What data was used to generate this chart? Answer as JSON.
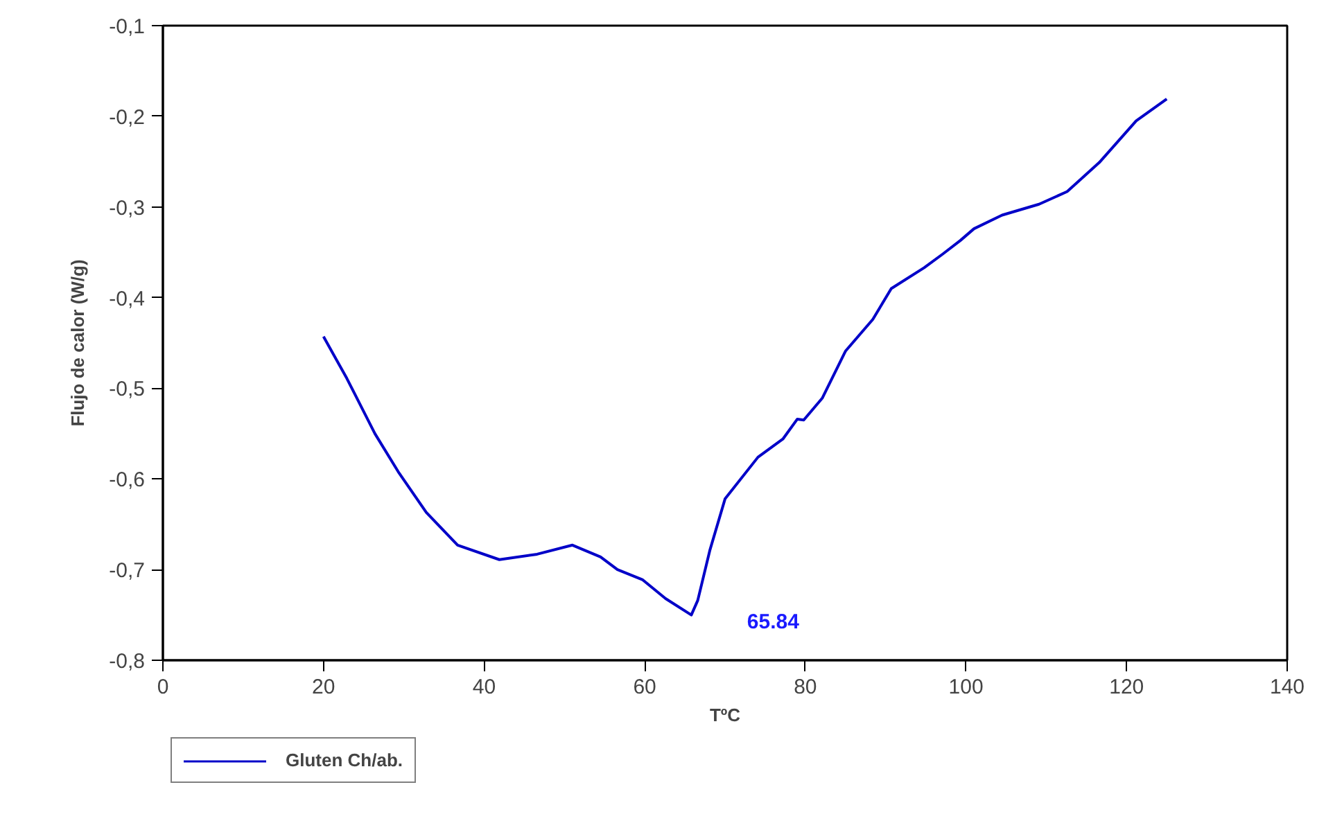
{
  "chart_data": {
    "type": "line",
    "xlabel": "TºC",
    "ylabel": "Flujo de calor (W/g)",
    "xlim": [
      0,
      140
    ],
    "xticks": [
      0,
      20,
      40,
      60,
      80,
      100,
      120,
      140
    ],
    "ylim": [
      -0.8,
      -0.1
    ],
    "yticks": [
      {
        "value": -0.8,
        "label": "-0,8"
      },
      {
        "value": -0.7,
        "label": "-0,7"
      },
      {
        "value": -0.6,
        "label": "-0,6"
      },
      {
        "value": -0.5,
        "label": "-0,5"
      },
      {
        "value": -0.4,
        "label": "-0,4"
      },
      {
        "value": -0.3,
        "label": "-0,3"
      },
      {
        "value": -0.2,
        "label": "-0,2"
      },
      {
        "value": -0.1,
        "label": "-0,1"
      }
    ],
    "grid": false,
    "legend": "bottom left",
    "marker": "none",
    "line_style": "solid",
    "annotations": [
      {
        "text": "65.84",
        "x": 65.84,
        "y": -0.75
      }
    ],
    "series": [
      {
        "name": "Gluten Ch/ab.",
        "color": "#0000c8",
        "x": [
          20,
          22.9,
          26.4,
          29.3,
          32.8,
          36.7,
          41.9,
          46.6,
          51.0,
          54.5,
          56.6,
          59.7,
          62.6,
          65.8,
          66.6,
          68.1,
          70.0,
          74.1,
          77.2,
          79.0,
          79.8,
          82.1,
          85.0,
          88.4,
          90.7,
          94.8,
          97.1,
          99.3,
          101.0,
          104.5,
          109.1,
          112.6,
          116.6,
          121.2,
          125
        ],
        "values": [
          -0.443,
          -0.489,
          -0.55,
          -0.592,
          -0.637,
          -0.673,
          -0.689,
          -0.683,
          -0.673,
          -0.686,
          -0.7,
          -0.711,
          -0.732,
          -0.75,
          -0.734,
          -0.679,
          -0.622,
          -0.576,
          -0.556,
          -0.534,
          -0.535,
          -0.511,
          -0.459,
          -0.424,
          -0.39,
          -0.367,
          -0.352,
          -0.337,
          -0.324,
          -0.309,
          -0.297,
          -0.283,
          -0.251,
          -0.205,
          -0.181
        ]
      }
    ]
  }
}
